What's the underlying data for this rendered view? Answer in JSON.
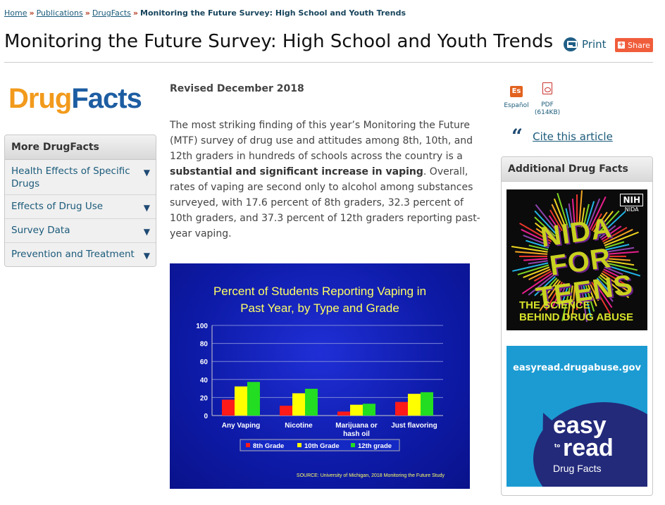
{
  "breadcrumb": {
    "home": "Home",
    "publications": "Publications",
    "drugfacts": "DrugFacts",
    "sep": "»",
    "current": "Monitoring the Future Survey: High School and Youth Trends"
  },
  "page_title": "Monitoring the Future Survey: High School and Youth Trends",
  "toolbar": {
    "print_label": "Print",
    "share_label": "Share",
    "share_icon": "plus-icon"
  },
  "logo": {
    "part1": "Drug",
    "part2": "Facts"
  },
  "sidenav": {
    "title": "More DrugFacts",
    "arrow": "▼",
    "items": [
      {
        "label": "Health Effects of Specific Drugs"
      },
      {
        "label": "Effects of Drug Use"
      },
      {
        "label": "Survey Data"
      },
      {
        "label": "Prevention and Treatment"
      }
    ]
  },
  "article": {
    "revised": "Revised December 2018",
    "intro_part1": "The most striking finding of this year’s Monitoring the Future (MTF) survey of drug use and attitudes among 8th, 10th, and 12th graders in hundreds of schools across the country is a ",
    "intro_bold": "substantial and significant increase in vaping",
    "intro_part2": ". Overall, rates of vaping are second only to alcohol among substances surveyed, with 17.6 percent of 8th graders, 32.3 percent of 10th graders, and 37.3 percent of 12th graders reporting past-year vaping."
  },
  "chart_data": {
    "type": "bar",
    "title_line1": "Percent of Students Reporting Vaping in",
    "title_line2": "Past Year, by Type and Grade",
    "categories": [
      "Any Vaping",
      "Nicotine",
      "Marijuana or hash oil",
      "Just flavoring"
    ],
    "category_lines": [
      [
        "Any Vaping"
      ],
      [
        "Nicotine"
      ],
      [
        "Marijuana or",
        "hash oil"
      ],
      [
        "Just flavoring"
      ]
    ],
    "series": [
      {
        "name": "8th Grade",
        "color": "#ff1a1a",
        "values": [
          17.6,
          10.9,
          4.4,
          15.1
        ]
      },
      {
        "name": "10th Grade",
        "color": "#ffff00",
        "values": [
          32.3,
          24.7,
          12.0,
          24.1
        ]
      },
      {
        "name": "12th grade",
        "color": "#22dd22",
        "values": [
          37.3,
          29.7,
          13.1,
          25.9
        ]
      }
    ],
    "yticks": [
      0,
      20,
      40,
      60,
      80,
      100
    ],
    "ylim": [
      0,
      100
    ],
    "source": "SOURCE: University of Michigan, 2018 Monitoring the Future Study",
    "legend_position": "bottom",
    "grid": true
  },
  "right": {
    "es_icon": "Es",
    "es_label": "Español",
    "pdf_label": "PDF",
    "pdf_size": "(614KB)",
    "cite_icon": "quote-icon",
    "cite_label": "Cite this article",
    "additional_title": "Additional Drug Facts",
    "promo1": {
      "nih": "NIH",
      "nida": "NIDA",
      "headline1": "NIDA FOR",
      "headline2": "TEENS",
      "tag1": "THE SCIENCE",
      "tag2": "BEHIND DRUG ABUSE"
    },
    "promo2": {
      "url": "easyread.drugabuse.gov",
      "easy": "easy",
      "to": "to",
      "read": "read",
      "sub": "Drug Facts"
    }
  }
}
